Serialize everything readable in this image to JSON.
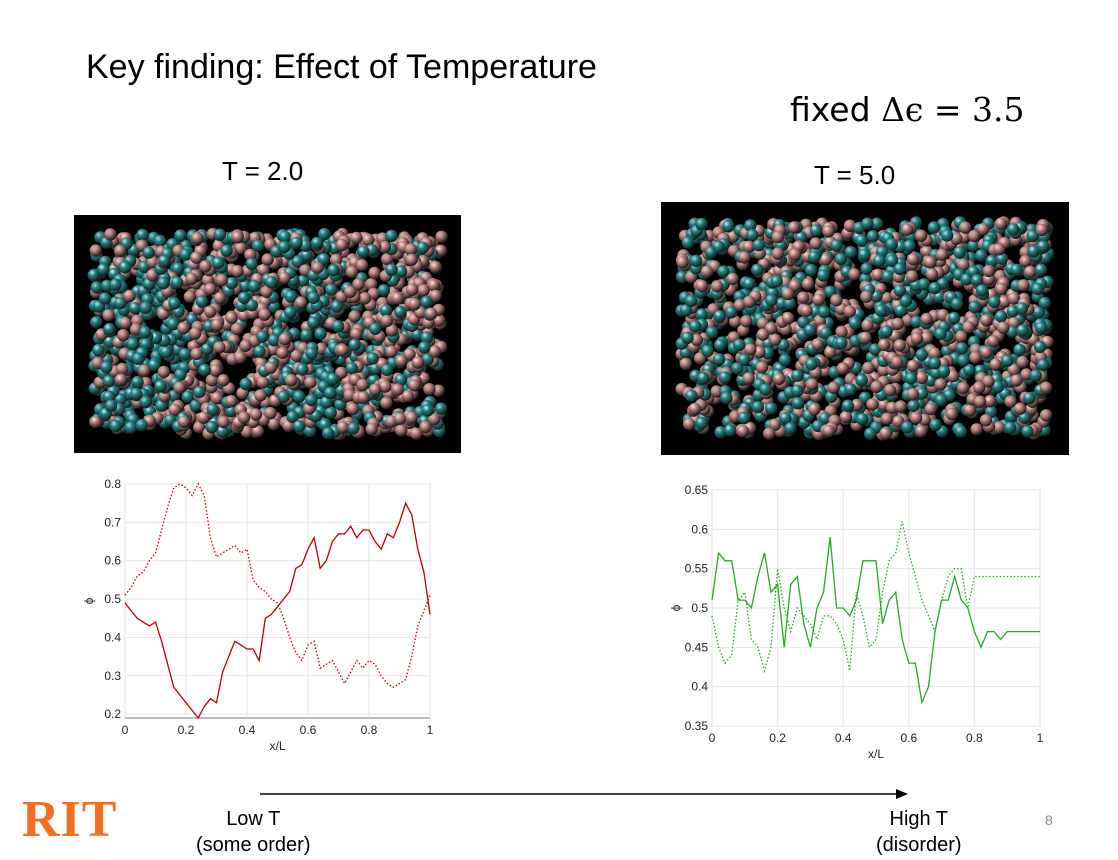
{
  "slide": {
    "title": "Key finding: Effect of Temperature",
    "fixed_label": "fixed",
    "fixed_math": "Δϵ = 3.5",
    "left_temp": "T = 2.0",
    "right_temp": "T = 5.0",
    "logo": "RIT",
    "low_note_line1": "Low T",
    "low_note_line2": "(some order)",
    "high_note_line1": "High T",
    "high_note_line2": "(disorder)",
    "page_number": "8",
    "colors": {
      "red_series": "#c00000",
      "green_series": "#22aa22",
      "teal_bead": "#1f8a8c",
      "pink_bead": "#c58580",
      "logo": "#F36E21"
    }
  },
  "chart_data": [
    {
      "type": "line",
      "xlabel": "x/L",
      "ylabel": "ϕ",
      "xlim": [
        0,
        1
      ],
      "ylim": [
        0.19,
        0.8
      ],
      "xticks": [
        "0",
        "0.2",
        "0.4",
        "0.6",
        "0.8",
        "1"
      ],
      "yticks": [
        "0.2",
        "0.3",
        "0.4",
        "0.5",
        "0.6",
        "0.7",
        "0.8"
      ],
      "grid": true,
      "series": [
        {
          "style": "solid",
          "color": "#c00000",
          "x": [
            0,
            0.02,
            0.04,
            0.06,
            0.08,
            0.1,
            0.12,
            0.14,
            0.16,
            0.18,
            0.2,
            0.22,
            0.24,
            0.26,
            0.28,
            0.3,
            0.32,
            0.34,
            0.36,
            0.38,
            0.4,
            0.42,
            0.44,
            0.46,
            0.48,
            0.5,
            0.52,
            0.54,
            0.56,
            0.58,
            0.6,
            0.62,
            0.64,
            0.66,
            0.68,
            0.7,
            0.72,
            0.74,
            0.76,
            0.78,
            0.8,
            0.82,
            0.84,
            0.86,
            0.88,
            0.9,
            0.92,
            0.94,
            0.96,
            0.98,
            1.0
          ],
          "y": [
            0.49,
            0.47,
            0.45,
            0.44,
            0.43,
            0.44,
            0.39,
            0.33,
            0.27,
            0.25,
            0.23,
            0.21,
            0.19,
            0.22,
            0.24,
            0.23,
            0.31,
            0.35,
            0.39,
            0.38,
            0.37,
            0.37,
            0.34,
            0.45,
            0.46,
            0.48,
            0.5,
            0.52,
            0.58,
            0.59,
            0.63,
            0.66,
            0.58,
            0.6,
            0.65,
            0.67,
            0.67,
            0.69,
            0.66,
            0.68,
            0.68,
            0.65,
            0.63,
            0.67,
            0.66,
            0.7,
            0.75,
            0.72,
            0.63,
            0.57,
            0.46
          ]
        },
        {
          "style": "dotted",
          "color": "#c00000",
          "x": [
            0,
            0.02,
            0.04,
            0.06,
            0.08,
            0.1,
            0.12,
            0.14,
            0.16,
            0.18,
            0.2,
            0.22,
            0.24,
            0.26,
            0.28,
            0.3,
            0.32,
            0.34,
            0.36,
            0.38,
            0.4,
            0.42,
            0.44,
            0.46,
            0.48,
            0.5,
            0.52,
            0.54,
            0.56,
            0.58,
            0.6,
            0.62,
            0.64,
            0.66,
            0.68,
            0.7,
            0.72,
            0.74,
            0.76,
            0.78,
            0.8,
            0.82,
            0.84,
            0.86,
            0.88,
            0.9,
            0.92,
            0.94,
            0.96,
            0.98,
            1.0
          ],
          "y": [
            0.51,
            0.53,
            0.56,
            0.57,
            0.6,
            0.62,
            0.68,
            0.74,
            0.79,
            0.81,
            0.79,
            0.77,
            0.8,
            0.77,
            0.66,
            0.61,
            0.62,
            0.63,
            0.64,
            0.62,
            0.63,
            0.55,
            0.53,
            0.52,
            0.5,
            0.49,
            0.45,
            0.4,
            0.36,
            0.34,
            0.38,
            0.39,
            0.32,
            0.33,
            0.34,
            0.31,
            0.28,
            0.31,
            0.34,
            0.32,
            0.34,
            0.33,
            0.3,
            0.28,
            0.27,
            0.28,
            0.29,
            0.35,
            0.43,
            0.47,
            0.51
          ]
        }
      ]
    },
    {
      "type": "line",
      "xlabel": "x/L",
      "ylabel": "ϕ",
      "xlim": [
        0,
        1
      ],
      "ylim": [
        0.35,
        0.65
      ],
      "xticks": [
        "0",
        "0.2",
        "0.4",
        "0.6",
        "0.8",
        "1"
      ],
      "yticks": [
        "0.35",
        "0.4",
        "0.45",
        "0.5",
        "0.55",
        "0.6",
        "0.65"
      ],
      "grid": true,
      "series": [
        {
          "style": "solid",
          "color": "#22aa22",
          "x": [
            0,
            0.02,
            0.04,
            0.06,
            0.08,
            0.1,
            0.12,
            0.14,
            0.16,
            0.18,
            0.2,
            0.22,
            0.24,
            0.26,
            0.28,
            0.3,
            0.32,
            0.34,
            0.36,
            0.38,
            0.4,
            0.42,
            0.44,
            0.46,
            0.48,
            0.5,
            0.52,
            0.54,
            0.56,
            0.58,
            0.6,
            0.62,
            0.64,
            0.66,
            0.68,
            0.7,
            0.72,
            0.74,
            0.76,
            0.78,
            0.8,
            0.82,
            0.84,
            0.86,
            0.88,
            0.9,
            0.92,
            0.94,
            0.96,
            0.98,
            1.0
          ],
          "y": [
            0.51,
            0.57,
            0.56,
            0.56,
            0.51,
            0.51,
            0.5,
            0.54,
            0.57,
            0.52,
            0.53,
            0.45,
            0.53,
            0.54,
            0.48,
            0.45,
            0.5,
            0.52,
            0.59,
            0.5,
            0.5,
            0.49,
            0.51,
            0.56,
            0.56,
            0.56,
            0.48,
            0.51,
            0.52,
            0.46,
            0.43,
            0.43,
            0.38,
            0.4,
            0.47,
            0.51,
            0.51,
            0.54,
            0.51,
            0.5,
            0.47,
            0.45,
            0.47,
            0.47,
            0.46,
            0.47,
            0.47,
            0.47,
            0.47,
            0.47,
            0.47
          ]
        },
        {
          "style": "dotted",
          "color": "#22aa22",
          "x": [
            0,
            0.02,
            0.04,
            0.06,
            0.08,
            0.1,
            0.12,
            0.14,
            0.16,
            0.18,
            0.2,
            0.22,
            0.24,
            0.26,
            0.28,
            0.3,
            0.32,
            0.34,
            0.36,
            0.38,
            0.4,
            0.42,
            0.44,
            0.46,
            0.48,
            0.5,
            0.52,
            0.54,
            0.56,
            0.58,
            0.6,
            0.62,
            0.64,
            0.66,
            0.68,
            0.7,
            0.72,
            0.74,
            0.76,
            0.78,
            0.8,
            0.82,
            0.84,
            0.86,
            0.88,
            0.9,
            0.92,
            0.94,
            0.96,
            0.98,
            1.0
          ],
          "y": [
            0.49,
            0.45,
            0.43,
            0.44,
            0.51,
            0.52,
            0.46,
            0.45,
            0.42,
            0.45,
            0.55,
            0.5,
            0.47,
            0.5,
            0.49,
            0.48,
            0.46,
            0.49,
            0.49,
            0.48,
            0.46,
            0.42,
            0.52,
            0.49,
            0.45,
            0.46,
            0.52,
            0.56,
            0.57,
            0.61,
            0.57,
            0.54,
            0.51,
            0.49,
            0.47,
            0.51,
            0.54,
            0.55,
            0.55,
            0.5,
            0.54,
            0.54,
            0.54,
            0.54,
            0.54,
            0.54,
            0.54,
            0.54,
            0.54,
            0.54,
            0.54
          ]
        }
      ]
    }
  ]
}
